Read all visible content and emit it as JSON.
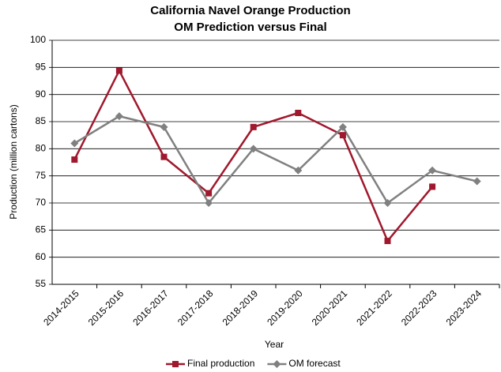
{
  "chart_data": {
    "type": "line",
    "title": "California Navel Orange Production",
    "subtitle": "OM Prediction versus Final",
    "x_label": "Year",
    "y_label": "Production (million cartons)",
    "categories": [
      "2014-2015",
      "2015-2016",
      "2016-2017",
      "2017-2018",
      "2018-2019",
      "2019-2020",
      "2020-2021",
      "2021-2022",
      "2022-2023",
      "2023-2024"
    ],
    "series": [
      {
        "name": "Final production",
        "color": "#a0182d",
        "marker": "square",
        "values": [
          78,
          94.4,
          78.5,
          71.8,
          84,
          86.6,
          82.5,
          63,
          73,
          null
        ]
      },
      {
        "name": "OM forecast",
        "color": "#808080",
        "marker": "diamond",
        "values": [
          81,
          86,
          84,
          70,
          80,
          76,
          84,
          70,
          76,
          74
        ]
      }
    ],
    "ylim": [
      55,
      100
    ],
    "yticks": [
      55,
      60,
      65,
      70,
      75,
      80,
      85,
      90,
      95,
      100
    ],
    "grid": true,
    "legend": "bottom"
  }
}
